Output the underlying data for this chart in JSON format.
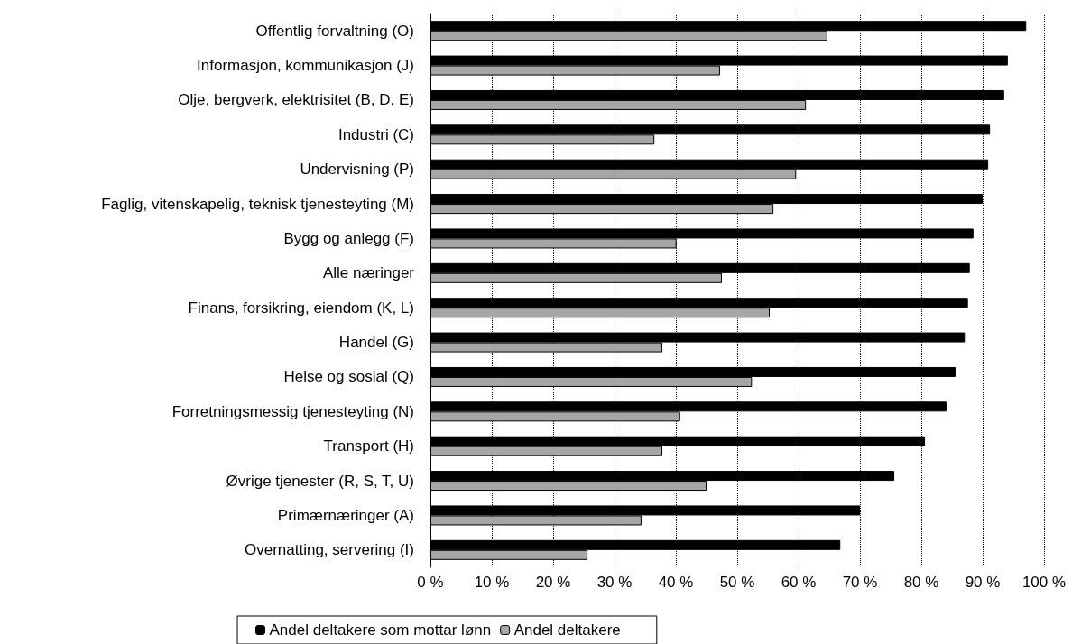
{
  "chart_data": {
    "type": "bar",
    "orientation": "horizontal",
    "categories": [
      "Offentlig forvaltning (O)",
      "Informasjon, kommunikasjon (J)",
      "Olje, bergverk, elektrisitet (B, D, E)",
      "Industri (C)",
      "Undervisning (P)",
      "Faglig, vitenskapelig, teknisk tjenesteyting (M)",
      "Bygg og anlegg (F)",
      "Alle næringer",
      "Finans, forsikring, eiendom (K, L)",
      "Handel (G)",
      "Helse og sosial (Q)",
      "Forretningsmessig tjenesteyting (N)",
      "Transport (H)",
      "Øvrige tjenester (R, S, T, U)",
      "Primærnæringer (A)",
      "Overnatting, servering (I)"
    ],
    "series": [
      {
        "name": "Andel deltakere som mottar lønn",
        "color": "#000000",
        "values": [
          97.1,
          94.1,
          93.5,
          91.2,
          90.9,
          90.0,
          88.5,
          87.9,
          87.6,
          87.1,
          85.6,
          84.1,
          80.6,
          75.6,
          70.0,
          66.8
        ]
      },
      {
        "name": "Andel deltakere",
        "color": "#a6a6a6",
        "values": [
          64.7,
          47.2,
          61.2,
          36.5,
          59.6,
          55.9,
          40.1,
          47.5,
          55.3,
          37.8,
          52.4,
          40.7,
          37.8,
          45.0,
          34.4,
          25.6
        ]
      }
    ],
    "xlim": [
      0,
      100
    ],
    "xticks": [
      {
        "value": 0,
        "label": "0 %"
      },
      {
        "value": 10,
        "label": "10 %"
      },
      {
        "value": 20,
        "label": "20 %"
      },
      {
        "value": 30,
        "label": "30 %"
      },
      {
        "value": 40,
        "label": "40 %"
      },
      {
        "value": 50,
        "label": "50 %"
      },
      {
        "value": 60,
        "label": "60 %"
      },
      {
        "value": 70,
        "label": "70 %"
      },
      {
        "value": 80,
        "label": "80 %"
      },
      {
        "value": 90,
        "label": "90 %"
      },
      {
        "value": 100,
        "label": "100 %"
      }
    ],
    "grid": "x",
    "legend": "bottom"
  }
}
